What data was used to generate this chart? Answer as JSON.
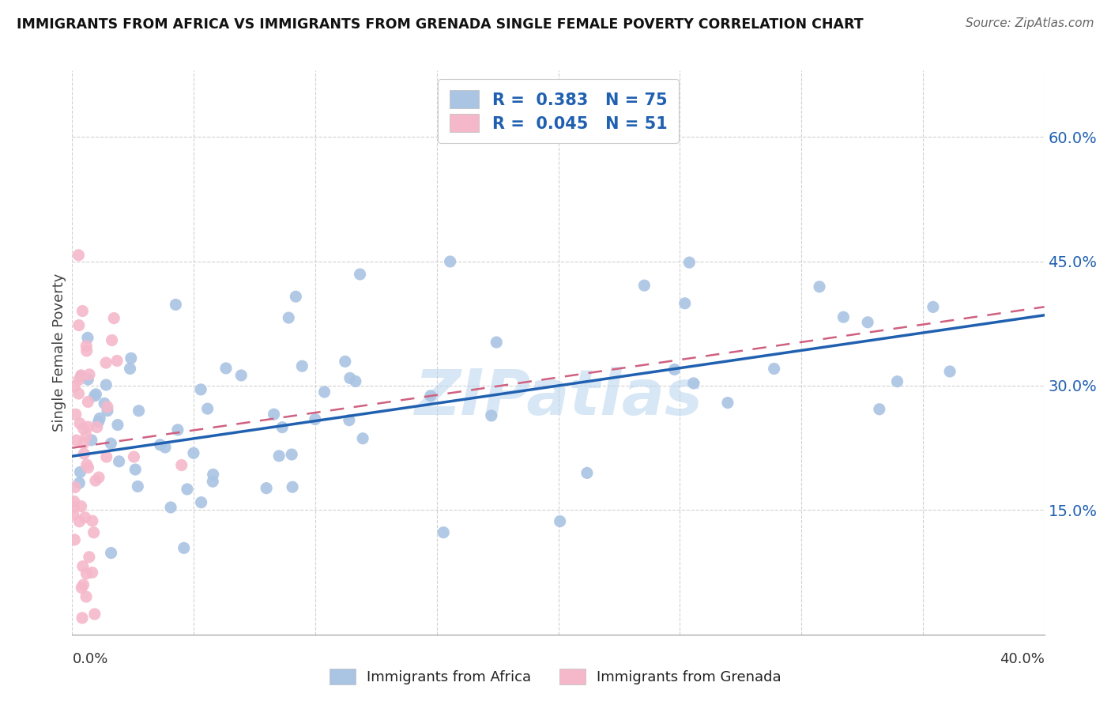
{
  "title": "IMMIGRANTS FROM AFRICA VS IMMIGRANTS FROM GRENADA SINGLE FEMALE POVERTY CORRELATION CHART",
  "source": "Source: ZipAtlas.com",
  "ylabel": "Single Female Poverty",
  "y_ticks_right": [
    "15.0%",
    "30.0%",
    "45.0%",
    "60.0%"
  ],
  "y_ticks_right_vals": [
    0.15,
    0.3,
    0.45,
    0.6
  ],
  "legend_africa_label": "Immigrants from Africa",
  "legend_grenada_label": "Immigrants from Grenada",
  "africa_color": "#aac4e4",
  "africa_line_color": "#2060b0",
  "grenada_color": "#f5b8cb",
  "grenada_line_color": "#d06080",
  "watermark": "ZIPatlas",
  "background_color": "#ffffff",
  "xlim": [
    0.0,
    0.4
  ],
  "ylim": [
    0.0,
    0.68
  ],
  "africa_line_x0": 0.0,
  "africa_line_y0": 0.215,
  "africa_line_x1": 0.4,
  "africa_line_y1": 0.385,
  "grenada_line_x0": 0.0,
  "grenada_line_y0": 0.225,
  "grenada_line_x1": 0.4,
  "grenada_line_y1": 0.395
}
